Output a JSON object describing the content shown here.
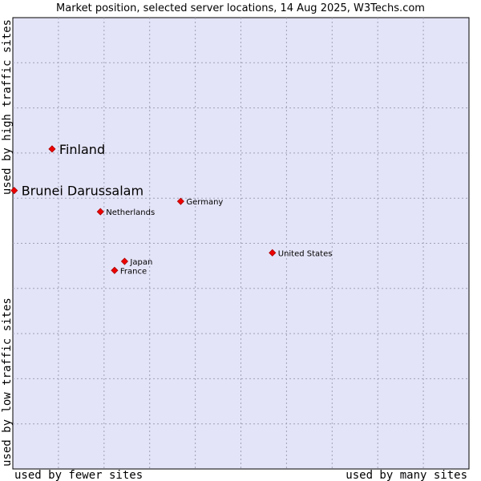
{
  "chart_data": {
    "type": "scatter",
    "title": "Market position, selected server locations, 14 Aug 2025, W3Techs.com",
    "xlabel_left": "used by fewer sites",
    "xlabel_right": "used by many sites",
    "ylabel_bottom": "used by low traffic sites",
    "ylabel_top": "used by high traffic sites",
    "xlim": [
      0,
      100
    ],
    "ylim": [
      0,
      100
    ],
    "grid": true,
    "points": [
      {
        "name": "Finland",
        "x": 8.6,
        "y": 70.9,
        "highlight": true
      },
      {
        "name": "Brunei Darussalam",
        "x": 0.3,
        "y": 61.7,
        "highlight": true
      },
      {
        "name": "Germany",
        "x": 36.8,
        "y": 59.3,
        "highlight": false
      },
      {
        "name": "Netherlands",
        "x": 19.2,
        "y": 57.0,
        "highlight": false
      },
      {
        "name": "United States",
        "x": 56.9,
        "y": 47.9,
        "highlight": false
      },
      {
        "name": "Japan",
        "x": 24.5,
        "y": 46.0,
        "highlight": false
      },
      {
        "name": "France",
        "x": 22.3,
        "y": 44.0,
        "highlight": false
      }
    ],
    "colors": {
      "plot_bg": "#e4e4f8",
      "grid": "#a0a0b8",
      "marker": "#ee0000",
      "marker_stroke": "#aa0000"
    }
  }
}
